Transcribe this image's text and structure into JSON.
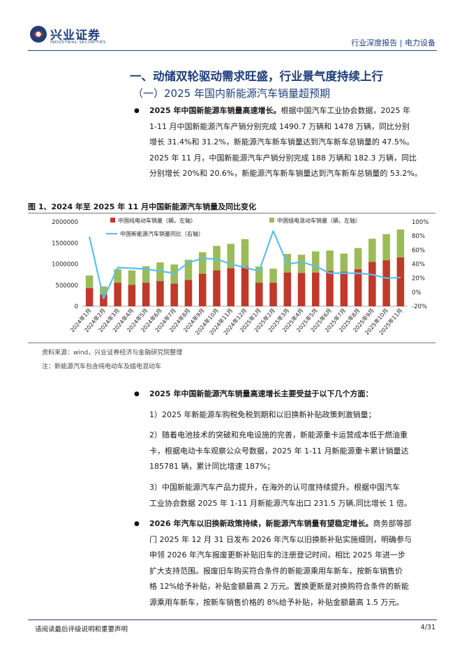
{
  "header": {
    "logo_cn": "兴业证券",
    "logo_en": "INDUSTRIAL SECURITIES",
    "right_text": "行业深度报告 | 电力设备"
  },
  "section": {
    "h1": "一、动储双轮驱动需求旺盛，行业景气度持续上行",
    "h2": "（一）2025 年国内新能源汽车销量超预期"
  },
  "para1": {
    "bold": "2025 年中国新能源车销量高速增长。",
    "lines": [
      "根据中国汽车工业协会数据，2025 年",
      "1-11 月中国新能源汽车产销分别完成 1490.7 万辆和 1478 万辆，同比分别",
      "增长 31.4%和 31.2%，新能源汽车新车销量达到汽车新车总销量的 47.5%。",
      "2025 年 11 月，中国新能源汽车产销分别完成 188 万辆和 182.3 万辆，同比",
      "分别增长 20%和 20.6%，新能源汽车新车销量达到汽车新车总销量的 53.2%。"
    ]
  },
  "figure": {
    "title": "图 1、2024 年至 2025 年 11 月中国新能源汽车销量及同比变化",
    "source": "资料来源：wind，兴业证券经济与金融研究院整理",
    "note": "注：新能源汽车包含纯电动车及插电混动车"
  },
  "chart_data": {
    "type": "bar",
    "stacked": true,
    "categories": [
      "2024年1月",
      "2024年2月",
      "2024年3月",
      "2024年4月",
      "2024年5月",
      "2024年6月",
      "2024年7月",
      "2024年8月",
      "2024年9月",
      "2024年10月",
      "2024年11月",
      "2024年12月",
      "2025年1月",
      "2025年2月",
      "2025年3月",
      "2025年4月",
      "2025年5月",
      "2025年6月",
      "2025年7月",
      "2025年8月",
      "2025年9月",
      "2025年10月",
      "2025年11月"
    ],
    "series": [
      {
        "name": "中国纯电动车销量（辆，左轴）",
        "color": "#c0392b",
        "axis": "left",
        "values": [
          430000,
          280000,
          560000,
          510000,
          560000,
          600000,
          540000,
          620000,
          770000,
          850000,
          900000,
          940000,
          560000,
          560000,
          800000,
          790000,
          800000,
          840000,
          820000,
          880000,
          1050000,
          1090000,
          1160000
        ]
      },
      {
        "name": "中国插电混动车销量（辆，左轴）",
        "color": "#9bbb59",
        "axis": "left",
        "values": [
          300000,
          190000,
          320000,
          340000,
          390000,
          440000,
          450000,
          480000,
          510000,
          580000,
          580000,
          650000,
          380000,
          330000,
          440000,
          430000,
          500000,
          480000,
          430000,
          500000,
          550000,
          620000,
          660000
        ]
      },
      {
        "name": "中国新能源汽车销量同比（右轴）",
        "color": "#5bc0eb",
        "axis": "right",
        "type": "line",
        "values": [
          79,
          -9,
          35,
          34,
          33,
          30,
          27,
          42,
          48,
          47,
          40,
          35,
          30,
          87,
          40,
          43,
          37,
          27,
          27,
          27,
          25,
          20,
          21
        ]
      }
    ],
    "yleft": {
      "ticks": [
        "0",
        "500000",
        "1000000",
        "1500000",
        "2000000"
      ],
      "range": [
        0,
        2000000
      ]
    },
    "yright": {
      "ticks": [
        "-20%",
        "0%",
        "20%",
        "40%",
        "60%",
        "80%",
        "100%"
      ],
      "range": [
        -20,
        100
      ]
    },
    "legend": "top",
    "grid": false
  },
  "para2": {
    "bold": "2025 年中国新能源汽车销量高速增长主要受益于以下几个方面：",
    "item1": "1）2025 年新能源车购税免税到期和以旧换新补贴政策刺激销量；",
    "item2_lines": [
      "2）随着电池技术的突破和充电设施的完善，新能源重卡运营成本低于燃油重",
      "卡，根据电动卡车观察公众号数据，2025 年 1-11 月新能源重卡累计销量达",
      "185781 辆，累计同比增速 187%；"
    ],
    "item3_lines": [
      "3）中国新能源汽车产品力提升，在海外的认可度持续提升。根据中国汽车",
      "工业协会数据 2025 年 1-11 月新能源汽车出口 231.5 万辆,同比增长 1 倍。"
    ]
  },
  "para3": {
    "bold": "2026 年汽车以旧换新政策持续，新能源汽车销量有望稳定增长。",
    "lines": [
      "商务部等部",
      "门 2025 年 12 月 31 日发布 2026 年汽车以旧换新补贴实施细则，明确参与",
      "申领 2026 年汽车报废更新补贴旧车的注册登记时间，相比 2025 年进一步",
      "扩大支持范围。报废旧车购买符合条件的新能源乘用车新车，按新车销售价",
      "格 12%给予补贴，补贴金额最高 2 万元。置换更新是对换购符合条件的新能",
      "源乘用车新车，按新车销售价格的 8%给予补贴，补贴金额最高 1.5 万元。"
    ]
  },
  "footer": {
    "left": "请阅读最后评级说明和重要声明",
    "right": "4/31"
  }
}
